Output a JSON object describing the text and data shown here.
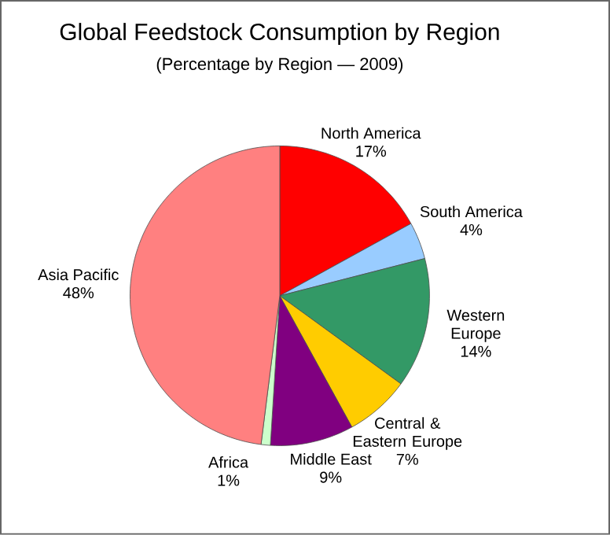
{
  "chart_data": {
    "type": "pie",
    "title": "Global Feedstock Consumption by Region",
    "subtitle": "(Percentage by Region — 2009)",
    "categories": [
      "North America",
      "South America",
      "Western Europe",
      "Central & Eastern Europe",
      "Middle East",
      "Africa",
      "Asia Pacific"
    ],
    "values": [
      17,
      4,
      14,
      7,
      9,
      1,
      48
    ],
    "value_labels": [
      "17%",
      "4%",
      "14%",
      "7%",
      "9%",
      "1%",
      "48%"
    ],
    "colors": [
      "#ff0000",
      "#99ccff",
      "#339966",
      "#ffcc00",
      "#800080",
      "#ccffcc",
      "#ff8080"
    ]
  }
}
